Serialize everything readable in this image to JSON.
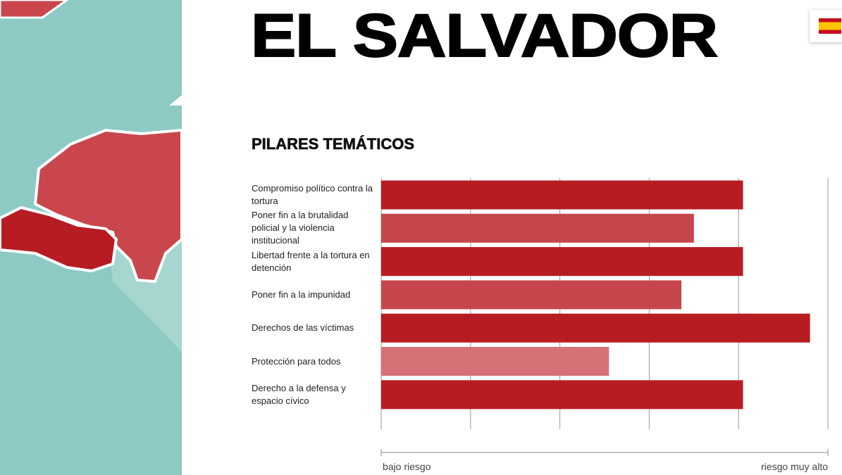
{
  "header": {
    "title": "EL SALVADOR"
  },
  "chart_data": {
    "type": "hbar",
    "title": "PILARES TEMÁTICOS",
    "categories": [
      "Compromiso político contra la tortura",
      "Poner fin a la brutalidad policial y la violencia institucional",
      "Libertad frente a la tortura en detención",
      "Poner fin a la impunidad",
      "Derechos de las víctimas",
      "Protección para todos",
      "Derecho a la defensa y espacio cívico"
    ],
    "values": [
      4.05,
      3.5,
      4.05,
      3.36,
      4.8,
      2.55,
      4.05
    ],
    "colors": [
      "#b71c22",
      "#c6464b",
      "#b71c22",
      "#c6464b",
      "#b71c22",
      "#d47277",
      "#b71c22"
    ],
    "xlim": [
      0,
      5
    ],
    "xticks": [
      0,
      1,
      2,
      3,
      4,
      5
    ],
    "grid": true,
    "scale_labels": [
      "bajo riesgo",
      "riesgo muy alto"
    ]
  }
}
